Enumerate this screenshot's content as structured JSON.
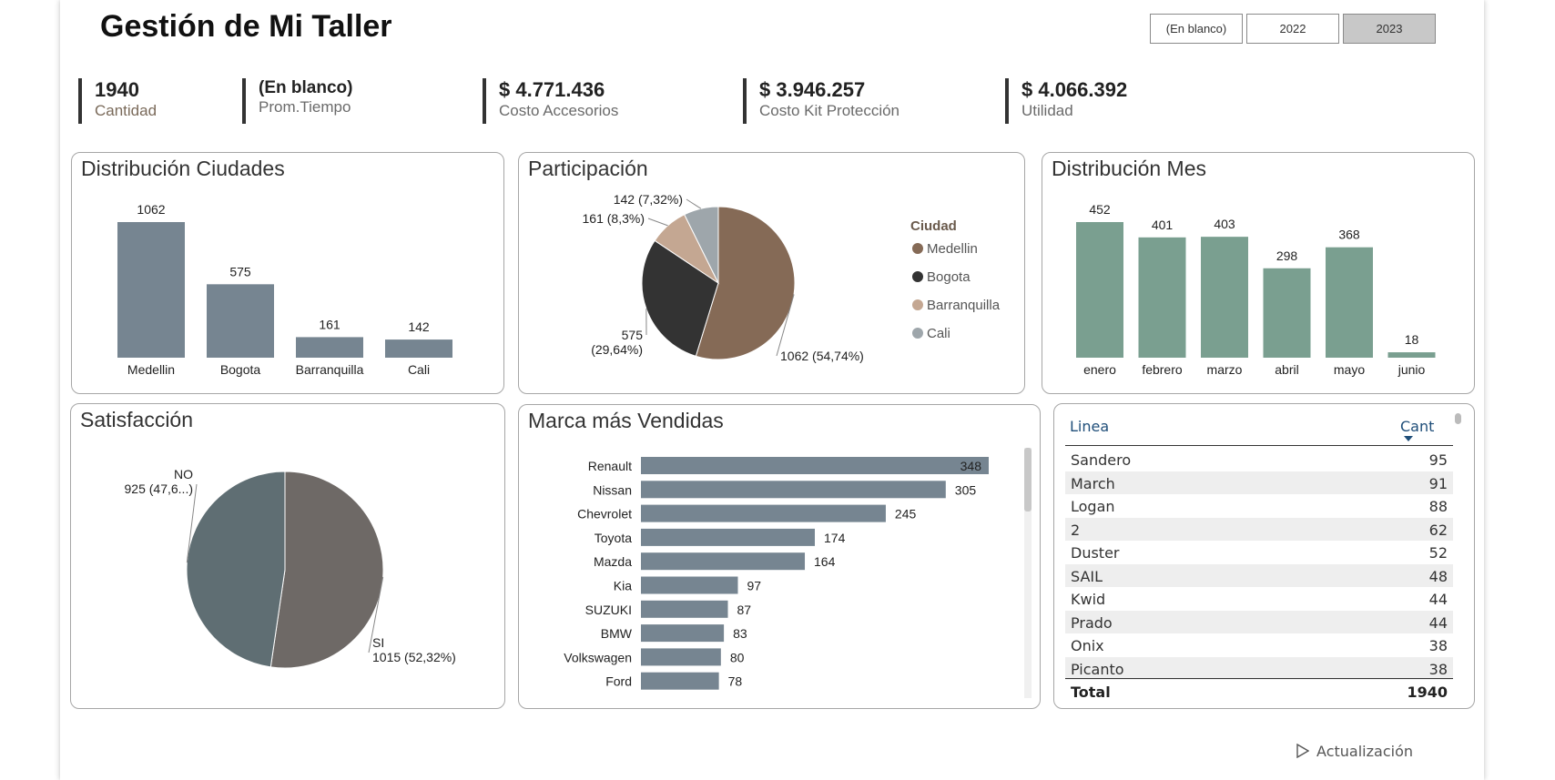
{
  "header": {
    "title": "Gestión de Mi Taller"
  },
  "slicers": [
    {
      "label": "(En blanco)",
      "selected": false
    },
    {
      "label": "2022",
      "selected": false
    },
    {
      "label": "2023",
      "selected": true
    }
  ],
  "kpis": [
    {
      "value": "1940",
      "label": "Cantidad"
    },
    {
      "value": "(En blanco)",
      "label": "Prom.Tiempo"
    },
    {
      "value": "$ 4.771.436",
      "label": "Costo Accesorios"
    },
    {
      "value": "$ 3.946.257",
      "label": "Costo Kit Protección"
    },
    {
      "value": "$ 4.066.392",
      "label": "Utilidad"
    }
  ],
  "chart_data": [
    {
      "type": "bar",
      "title": "Distribución Ciudades",
      "categories": [
        "Medellin",
        "Bogota",
        "Barranquilla",
        "Cali"
      ],
      "values": [
        1062,
        575,
        161,
        142
      ],
      "data_labels": [
        "1062",
        "575",
        "161",
        "142"
      ],
      "ylim": [
        0,
        1062
      ],
      "color": "#768591"
    },
    {
      "type": "pie",
      "title": "Participación",
      "legend_title": "Ciudad",
      "legend_position": "right",
      "categories": [
        "Medellin",
        "Bogota",
        "Barranquilla",
        "Cali"
      ],
      "values": [
        1062,
        575,
        161,
        142
      ],
      "labels": [
        "1062 (54,74%)",
        "575 (29,64%)",
        "161 (8,3%)",
        "142 (7,32%)"
      ],
      "colors": [
        "#856a56",
        "#333333",
        "#c4a792",
        "#9ea6ab"
      ]
    },
    {
      "type": "bar",
      "title": "Distribución Mes",
      "categories": [
        "enero",
        "febrero",
        "marzo",
        "abril",
        "mayo",
        "junio"
      ],
      "values": [
        452,
        401,
        403,
        298,
        368,
        18
      ],
      "data_labels": [
        "452",
        "401",
        "403",
        "298",
        "368",
        "18"
      ],
      "ylim": [
        0,
        452
      ],
      "color": "#7a9f90"
    },
    {
      "type": "pie",
      "title": "Satisfacción",
      "categories": [
        "SI",
        "NO"
      ],
      "values": [
        1015,
        925
      ],
      "labels": [
        "1015 (52,32%)",
        "925 (47,6...)"
      ],
      "colors": [
        "#6e6966",
        "#5f6e73"
      ]
    },
    {
      "type": "bar",
      "orientation": "horizontal",
      "title": "Marca más Vendidas",
      "categories": [
        "Renault",
        "Nissan",
        "Chevrolet",
        "Toyota",
        "Mazda",
        "Kia",
        "SUZUKI",
        "BMW",
        "Volkswagen",
        "Ford"
      ],
      "values": [
        348,
        305,
        245,
        174,
        164,
        97,
        87,
        83,
        80,
        78
      ],
      "data_labels": [
        "348",
        "305",
        "245",
        "174",
        "164",
        "97",
        "87",
        "83",
        "80",
        "78"
      ],
      "xlim": [
        0,
        348
      ],
      "color": "#768591"
    },
    {
      "type": "table",
      "columns": [
        "Linea",
        "Cant"
      ],
      "rows": [
        [
          "Sandero",
          "95"
        ],
        [
          "March",
          "91"
        ],
        [
          "Logan",
          "88"
        ],
        [
          "2",
          "62"
        ],
        [
          "Duster",
          "52"
        ],
        [
          "SAIL",
          "48"
        ],
        [
          "Kwid",
          "44"
        ],
        [
          "Prado",
          "44"
        ],
        [
          "Onix",
          "38"
        ],
        [
          "Picanto",
          "38"
        ]
      ],
      "total": [
        "Total",
        "1940"
      ]
    }
  ],
  "footer": {
    "refresh_label": "Actualización"
  }
}
